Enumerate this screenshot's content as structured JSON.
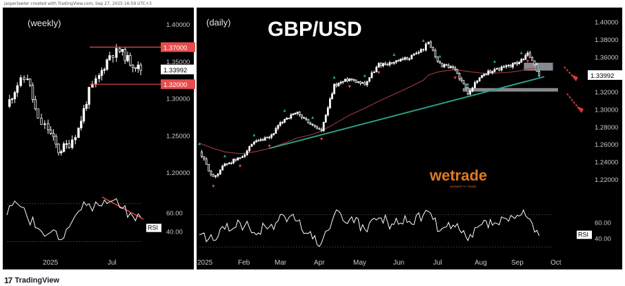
{
  "header": {
    "text": "jasperlawler created with TradingView.com, Sep 27, 2025 16:59 UTC+3"
  },
  "brand": {
    "name": "TradingView",
    "mark": "17"
  },
  "colors": {
    "background": "#000000",
    "panel_bg": "#0b0b0d",
    "candle": "#ffffff",
    "ema": "#a33a3a",
    "trendline": "#2ea08a",
    "level_box": "#e74c4c",
    "resistance_line": "#e74c4c",
    "support_zone": "#9ea2a8",
    "arrow": "#e03a3a",
    "up_marker": "#26a69a",
    "down_marker": "#ef5350",
    "rsi_line": "#ffffff",
    "price_tag_bg": "#ffffff",
    "price_tag_fg": "#000000",
    "axis_text": "#c9c9c9",
    "wetrade": "#e07a1f"
  },
  "watermark": {
    "text": "wetrade",
    "tagline": "ANSWER TO TRADE"
  },
  "chart_data": [
    {
      "type": "line",
      "title": "(weekly)",
      "ylim": [
        1.19,
        1.415
      ],
      "yticks": [
        "1.40000",
        "1.35000",
        "1.30000",
        "1.25000",
        "1.20000"
      ],
      "ytick_values": [
        1.4,
        1.35,
        1.3,
        1.25,
        1.2
      ],
      "x_ticks": [
        "2025",
        "Jul"
      ],
      "x": [
        "2024-08",
        "2024-09",
        "2024-10",
        "2024-11",
        "2024-12",
        "2025-01",
        "2025-02",
        "2025-03",
        "2025-04",
        "2025-05",
        "2025-06",
        "2025-07",
        "2025-08",
        "2025-09"
      ],
      "series": [
        {
          "values": [
            1.29,
            1.32,
            1.33,
            1.27,
            1.26,
            1.23,
            1.24,
            1.26,
            1.31,
            1.33,
            1.36,
            1.365,
            1.35,
            1.3399
          ]
        }
      ],
      "levels": [
        {
          "label": "1.37000",
          "value": 1.37
        },
        {
          "label": "1.32000",
          "value": 1.32
        }
      ],
      "last_price": {
        "label": "1.33992",
        "value": 1.33992
      },
      "rsi": {
        "label": "RSI",
        "yticks": [
          "60.00",
          "40.00"
        ],
        "ytick_values": [
          60,
          40
        ],
        "values": [
          58,
          70,
          55,
          44,
          38,
          32,
          45,
          62,
          70,
          68,
          72,
          66,
          60,
          56
        ]
      }
    },
    {
      "type": "line",
      "title": "(daily)",
      "heading": "GBP/USD",
      "ylim": [
        1.205,
        1.41
      ],
      "yticks": [
        "1.40000",
        "1.38000",
        "1.36000",
        "1.34000",
        "1.32000",
        "1.30000",
        "1.28000",
        "1.26000",
        "1.24000",
        "1.22000"
      ],
      "ytick_values": [
        1.4,
        1.38,
        1.36,
        1.34,
        1.32,
        1.3,
        1.28,
        1.26,
        1.24,
        1.22
      ],
      "x_ticks": [
        "2025",
        "Feb",
        "Mar",
        "Apr",
        "May",
        "Jun",
        "Jul",
        "Aug",
        "Sep",
        "Oct"
      ],
      "x": [
        "2025-01-02",
        "2025-01-13",
        "2025-01-22",
        "2025-02-03",
        "2025-02-14",
        "2025-02-26",
        "2025-03-10",
        "2025-03-20",
        "2025-04-01",
        "2025-04-08",
        "2025-04-18",
        "2025-04-30",
        "2025-05-12",
        "2025-05-23",
        "2025-06-04",
        "2025-06-16",
        "2025-06-27",
        "2025-07-01",
        "2025-07-10",
        "2025-07-22",
        "2025-08-01",
        "2025-08-12",
        "2025-08-22",
        "2025-09-02",
        "2025-09-12",
        "2025-09-17",
        "2025-09-26"
      ],
      "series": [
        {
          "values": [
            1.252,
            1.222,
            1.238,
            1.245,
            1.262,
            1.268,
            1.29,
            1.296,
            1.282,
            1.276,
            1.328,
            1.336,
            1.33,
            1.352,
            1.354,
            1.36,
            1.37,
            1.378,
            1.352,
            1.346,
            1.32,
            1.34,
            1.346,
            1.35,
            1.356,
            1.365,
            1.3399
          ]
        }
      ],
      "trendline": {
        "from": [
          "2025-02-26",
          1.256
        ],
        "to": [
          "2025-09-30",
          1.338
        ]
      },
      "ema": {
        "values": [
          1.262,
          1.256,
          1.252,
          1.25,
          1.252,
          1.256,
          1.262,
          1.268,
          1.272,
          1.276,
          1.284,
          1.294,
          1.302,
          1.31,
          1.318,
          1.326,
          1.334,
          1.34,
          1.344,
          1.346,
          1.344,
          1.342,
          1.342,
          1.343,
          1.345,
          1.347,
          1.348
        ]
      },
      "zones": [
        {
          "from": "2025-09-14",
          "to": "2025-09-26",
          "y0": 1.345,
          "y1": 1.354
        },
        {
          "from": "2025-07-28",
          "to": "2025-09-30",
          "y0": 1.321,
          "y1": 1.325
        }
      ],
      "last_price": {
        "label": "1.33992",
        "value": 1.33992
      },
      "rsi": {
        "label": "RSI",
        "yticks": [
          "60.00",
          "40.00"
        ],
        "ytick_values": [
          60,
          40
        ],
        "values": [
          45,
          38,
          52,
          60,
          48,
          55,
          68,
          62,
          40,
          35,
          70,
          64,
          52,
          66,
          58,
          62,
          70,
          74,
          50,
          55,
          38,
          58,
          60,
          62,
          70,
          66,
          44
        ]
      }
    }
  ]
}
